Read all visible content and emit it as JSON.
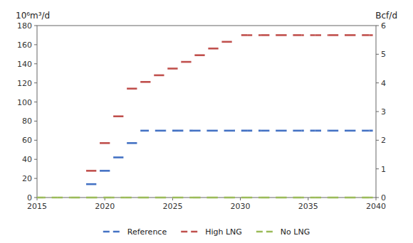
{
  "chart_data": {
    "type": "line",
    "y_label": "10⁶m³/d",
    "y2_label": "Bcf/d",
    "xlim": [
      2015,
      2040
    ],
    "xticks": [
      2015,
      2020,
      2025,
      2030,
      2035,
      2040
    ],
    "ylim": [
      0,
      180
    ],
    "yticks": [
      0,
      20,
      40,
      60,
      80,
      100,
      120,
      140,
      160,
      180
    ],
    "y2lim": [
      0,
      6
    ],
    "y2ticks": [
      0,
      1,
      2,
      3,
      4,
      5,
      6
    ],
    "grid": false,
    "legend": "bottom",
    "series": [
      {
        "name": "Reference",
        "color": "#4472C4",
        "line_style": "dashed",
        "x": [
          2019,
          2020,
          2021,
          2022,
          2023,
          2024,
          2025,
          2026,
          2027,
          2028,
          2029,
          2030,
          2031,
          2032,
          2033,
          2034,
          2035,
          2036,
          2037,
          2038,
          2039,
          2040
        ],
        "values": [
          14,
          28,
          42,
          57,
          70,
          70,
          70,
          70,
          70,
          70,
          70,
          70,
          70,
          70,
          70,
          70,
          70,
          70,
          70,
          70,
          70,
          70
        ]
      },
      {
        "name": "High LNG",
        "color": "#C0504D",
        "line_style": "dashed",
        "x": [
          2019,
          2020,
          2021,
          2022,
          2023,
          2024,
          2025,
          2026,
          2027,
          2028,
          2029,
          2030,
          2031,
          2032,
          2033,
          2034,
          2035,
          2036,
          2037,
          2038,
          2039,
          2040
        ],
        "values": [
          28,
          57,
          85,
          114,
          121,
          128,
          135,
          142,
          149,
          156,
          163,
          170,
          170,
          170,
          170,
          170,
          170,
          170,
          170,
          170,
          170,
          170
        ]
      },
      {
        "name": "No LNG",
        "color": "#9BBB59",
        "line_style": "dashed",
        "x": [
          2015,
          2016,
          2017,
          2018,
          2019,
          2020,
          2021,
          2022,
          2023,
          2024,
          2025,
          2026,
          2027,
          2028,
          2029,
          2030,
          2031,
          2032,
          2033,
          2034,
          2035,
          2036,
          2037,
          2038,
          2039,
          2040
        ],
        "values": [
          0,
          0,
          0,
          0,
          0,
          0,
          0,
          0,
          0,
          0,
          0,
          0,
          0,
          0,
          0,
          0,
          0,
          0,
          0,
          0,
          0,
          0,
          0,
          0,
          0,
          0
        ]
      }
    ]
  }
}
